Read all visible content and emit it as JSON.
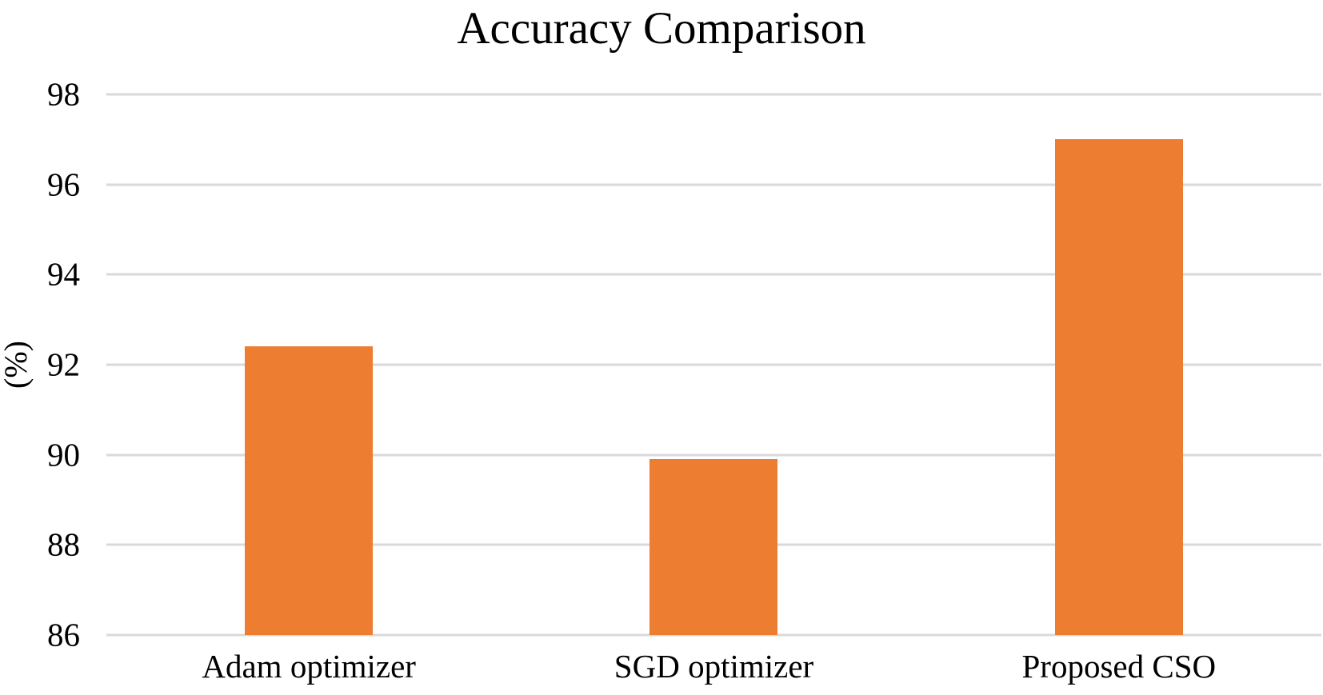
{
  "chart_data": {
    "type": "bar",
    "title": "Accuracy Comparison",
    "xlabel": "",
    "ylabel": "(%)",
    "categories": [
      "Adam optimizer",
      "SGD optimizer",
      "Proposed CSO"
    ],
    "values": [
      92.4,
      89.9,
      97.0
    ],
    "ylim": [
      86,
      98
    ],
    "yticks": [
      86,
      88,
      90,
      92,
      94,
      96,
      98
    ],
    "grid": true,
    "legend_position": "none",
    "bar_color": "#ED7D31",
    "gridline_color": "#D9D9D9",
    "text_color": "#000000",
    "background_color": "#FFFFFF"
  }
}
